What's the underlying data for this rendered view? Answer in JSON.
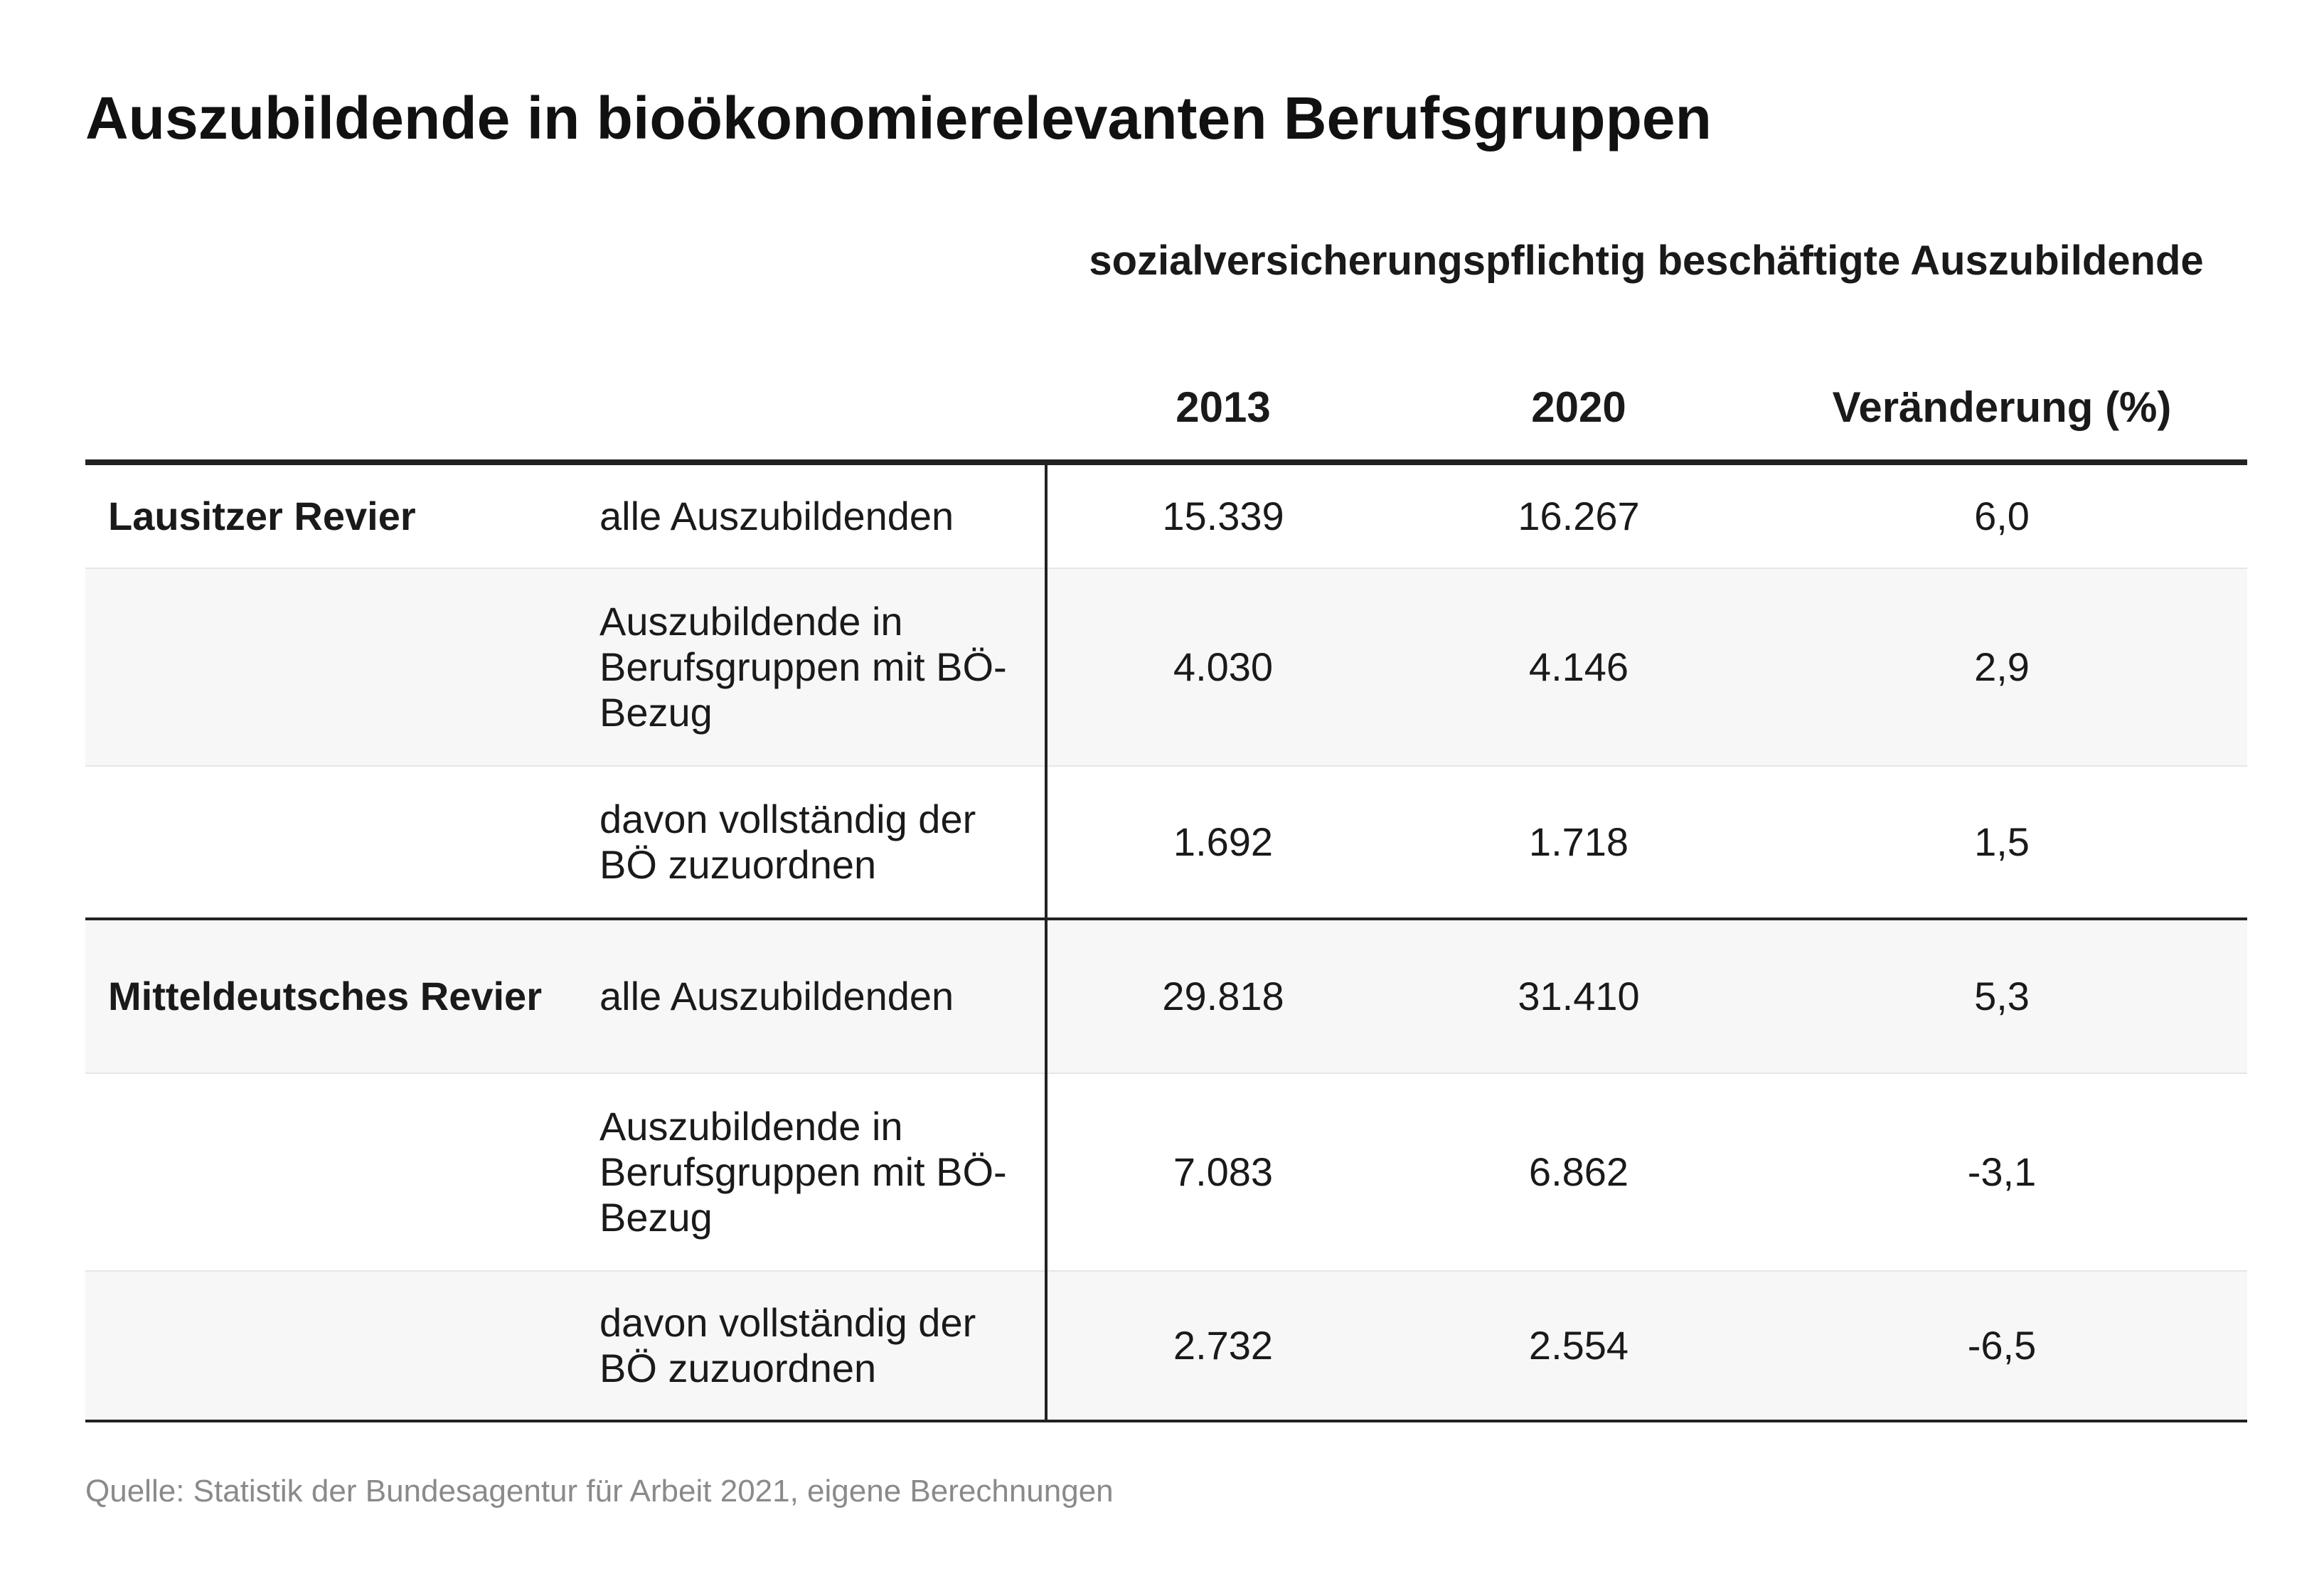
{
  "chart_data": {
    "type": "table",
    "title": "Auszubildende in bioökonomierelevanten Berufsgruppen",
    "group_header": "sozialversicherungspflichtig beschäftigte Auszubildende",
    "columns": [
      "2013",
      "2020",
      "Veränderung (%)"
    ],
    "rows": [
      {
        "region": "Lausitzer Revier",
        "label": "alle Auszubildenden",
        "v2013": "15.339",
        "v2020": "16.267",
        "change": "6,0"
      },
      {
        "region": "",
        "label": "Auszubildende in Berufsgruppen mit BÖ-Bezug",
        "v2013": "4.030",
        "v2020": "4.146",
        "change": "2,9"
      },
      {
        "region": "",
        "label": "davon vollständig der BÖ zuzuordnen",
        "v2013": "1.692",
        "v2020": "1.718",
        "change": "1,5"
      },
      {
        "region": "Mitteldeutsches Revier",
        "label": "alle Auszubildenden",
        "v2013": "29.818",
        "v2020": "31.410",
        "change": "5,3"
      },
      {
        "region": "",
        "label": "Auszubildende in Berufsgruppen mit BÖ-Bezug",
        "v2013": "7.083",
        "v2020": "6.862",
        "change": "-3,1"
      },
      {
        "region": "",
        "label": "davon vollständig der BÖ zuzuordnen",
        "v2013": "2.732",
        "v2020": "2.554",
        "change": "-6,5"
      }
    ],
    "source": "Quelle: Statistik der Bundesagentur für Arbeit 2021, eigene Berechnungen"
  }
}
